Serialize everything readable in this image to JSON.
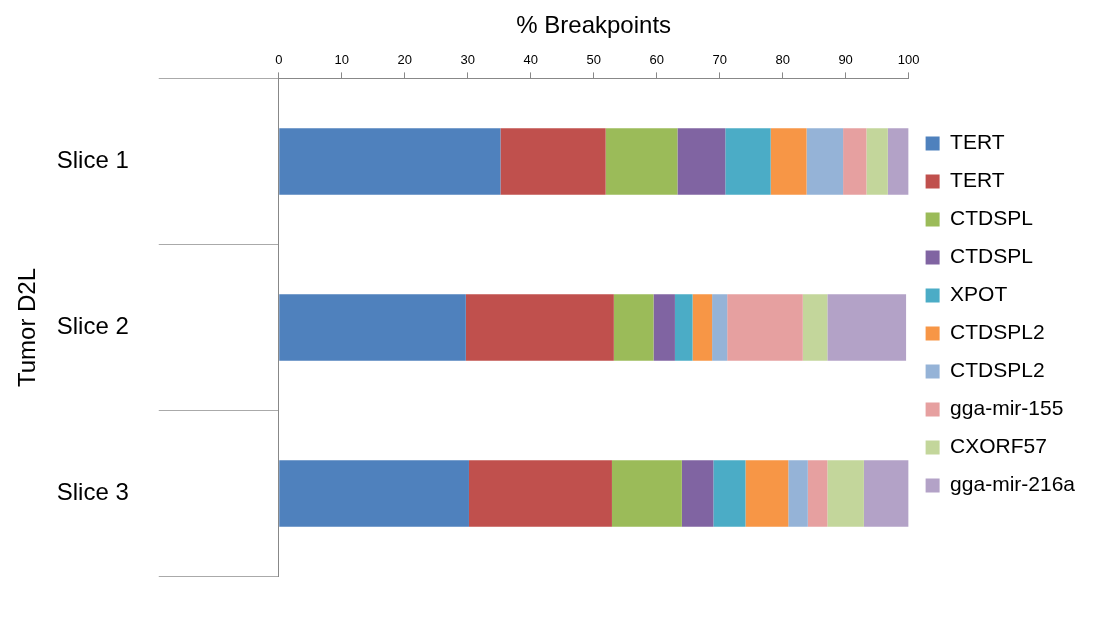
{
  "chart_data": {
    "type": "bar",
    "orientation": "horizontal",
    "stacked": true,
    "xlabel": "% Breakpoints",
    "ylabel": "Tumor D2L",
    "categories": [
      "Slice 1",
      "Slice 2",
      "Slice 3"
    ],
    "xlim": [
      0,
      100
    ],
    "xticks": [
      0,
      10,
      20,
      30,
      40,
      50,
      60,
      70,
      80,
      90,
      100
    ],
    "grid": false,
    "legend": "right",
    "series": [
      {
        "name": "TERT",
        "color": "#4f81bd",
        "values": [
          35.2,
          29.7,
          30.2
        ]
      },
      {
        "name": "TERT",
        "color": "#c0504d",
        "values": [
          16.7,
          23.5,
          22.7
        ]
      },
      {
        "name": "CTDSPL",
        "color": "#9bbb59",
        "values": [
          11.4,
          6.3,
          11.1
        ]
      },
      {
        "name": "CTDSPL",
        "color": "#8064a2",
        "values": [
          7.6,
          3.4,
          5.0
        ]
      },
      {
        "name": "XPOT",
        "color": "#4bacc6",
        "values": [
          7.2,
          2.8,
          5.1
        ]
      },
      {
        "name": "CTDSPL2",
        "color": "#f79646",
        "values": [
          5.7,
          3.1,
          6.8
        ]
      },
      {
        "name": "CTDSPL2",
        "color": "#95b3d7",
        "values": [
          5.8,
          2.4,
          3.1
        ]
      },
      {
        "name": "gga-mir-155",
        "color": "#e6a0a0",
        "values": [
          3.7,
          12.0,
          3.1
        ]
      },
      {
        "name": "CXORF57",
        "color": "#c3d69b",
        "values": [
          3.4,
          3.9,
          5.8
        ]
      },
      {
        "name": "gga-mir-216a",
        "color": "#b3a2c7",
        "values": [
          3.3,
          12.5,
          7.1
        ]
      }
    ]
  }
}
